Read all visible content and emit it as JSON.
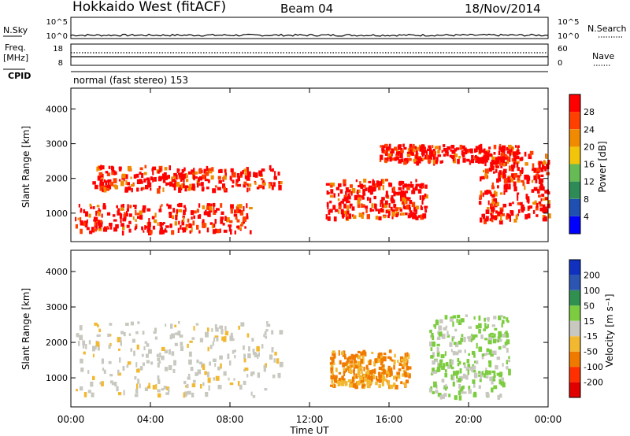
{
  "header": {
    "station": "Hokkaido West (fitACF)",
    "beam": "Beam 04",
    "date": "18/Nov/2014"
  },
  "noise_panel": {
    "left_label": "N.Sky",
    "left_ticks": [
      "10^5",
      "10^0"
    ],
    "right_label": "N.Search",
    "right_ticks": [
      "10^5",
      "10^0"
    ]
  },
  "freq_panel": {
    "left_label_line1": "Freq.",
    "left_label_line2": "[MHz]",
    "left_ticks": [
      "18",
      "8"
    ],
    "right_label": "Nave",
    "right_ticks": [
      "60",
      "0"
    ]
  },
  "cpid": {
    "label": "CPID",
    "text": "normal (fast stereo) 153"
  },
  "chart_data": [
    {
      "type": "heatmap",
      "title": "",
      "xlabel": "",
      "ylabel": "Slant Range [km]",
      "ylim": [
        180,
        4600
      ],
      "yticks": [
        "1000",
        "2000",
        "3000",
        "4000"
      ],
      "colorbar_label": "Power [dB]",
      "colorbar_ticks": [
        "4",
        "8",
        "12",
        "16",
        "20",
        "24",
        "28"
      ],
      "colors": [
        "#0000ff",
        "#1f4fb0",
        "#2e8b57",
        "#66bb55",
        "#f2c40a",
        "#f08a00",
        "#ff4000",
        "#ff0000"
      ],
      "features": [
        {
          "t0": 0.2,
          "t1": 9.0,
          "r0": 500,
          "r1": 1300,
          "level": "28+"
        },
        {
          "t0": 1.0,
          "t1": 10.5,
          "r0": 1700,
          "r1": 2400,
          "level": "24-28"
        },
        {
          "t0": 12.8,
          "t1": 17.8,
          "r0": 900,
          "r1": 2000,
          "level": "24-28"
        },
        {
          "t0": 15.5,
          "t1": 22.5,
          "r0": 2500,
          "r1": 3000,
          "level": "24-28"
        },
        {
          "t0": 20.5,
          "t1": 24.0,
          "r0": 800,
          "r1": 2800,
          "level": "24-28"
        }
      ]
    },
    {
      "type": "heatmap",
      "title": "",
      "xlabel": "Time UT",
      "ylabel": "Slant Range [km]",
      "ylim": [
        180,
        4600
      ],
      "yticks": [
        "1000",
        "2000",
        "3000",
        "4000"
      ],
      "xticks": [
        "00:00",
        "04:00",
        "08:00",
        "12:00",
        "16:00",
        "20:00",
        "00:00"
      ],
      "colorbar_label": "Velocity [m s⁻¹]",
      "colorbar_ticks": [
        "200",
        "100",
        "50",
        "15",
        "-15",
        "-50",
        "-100",
        "-200"
      ],
      "colors": [
        "#1030c0",
        "#2a55b0",
        "#2f9050",
        "#7ccc40",
        "#c8c8c0",
        "#f2b830",
        "#f07a00",
        "#ff3000",
        "#e00000"
      ],
      "features": [
        {
          "t0": 0.2,
          "t1": 10.5,
          "r0": 500,
          "r1": 2600,
          "level": "-15 to 15"
        },
        {
          "t0": 13.0,
          "t1": 17.0,
          "r0": 800,
          "r1": 1800,
          "level": "-50 to -100"
        },
        {
          "t0": 18.0,
          "t1": 22.0,
          "r0": 500,
          "r1": 2800,
          "level": "15 to 50"
        }
      ]
    }
  ]
}
